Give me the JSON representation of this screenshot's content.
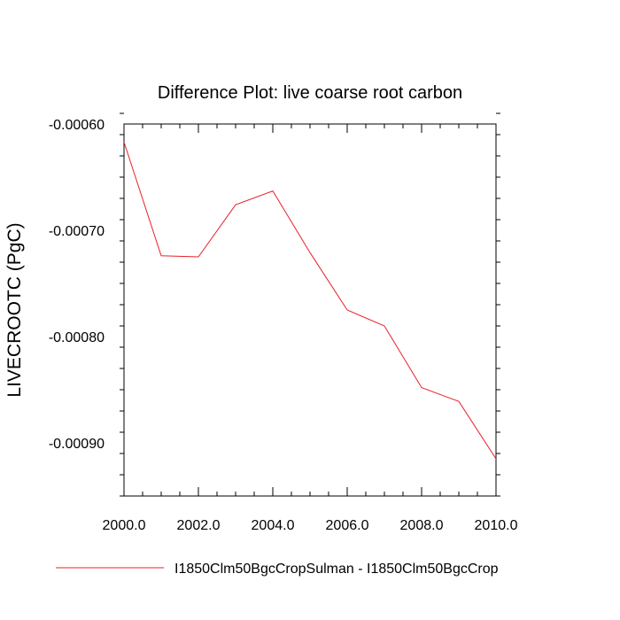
{
  "chart_data": {
    "type": "line",
    "title": "Difference Plot: live coarse root carbon",
    "xlabel": "",
    "ylabel": "LIVECROOTC  (PgC)",
    "xlim": [
      2000,
      2010
    ],
    "ylim": [
      -0.00095,
      -0.0006
    ],
    "x_ticks": [
      2000,
      2002,
      2004,
      2006,
      2008,
      2010
    ],
    "x_tick_labels": [
      "2000.0",
      "2002.0",
      "2004.0",
      "2006.0",
      "2008.0",
      "2010.0"
    ],
    "y_ticks": [
      -0.0006,
      -0.0007,
      -0.0008,
      -0.0009
    ],
    "y_tick_labels": [
      "-0.00060",
      "-0.00070",
      "-0.00080",
      "-0.00090"
    ],
    "grid": false,
    "legend_position": "bottom",
    "x": [
      2000,
      2001,
      2002,
      2003,
      2004,
      2005,
      2006,
      2007,
      2008,
      2009,
      2010
    ],
    "series": [
      {
        "name": "I1850Clm50BgcCropSulman - I1850Clm50BgcCrop",
        "color": "#e8202a",
        "values": [
          -0.000617,
          -0.000724,
          -0.000725,
          -0.000676,
          -0.000663,
          -0.000721,
          -0.000775,
          -0.00079,
          -0.000848,
          -0.000861,
          -0.000915
        ]
      }
    ]
  }
}
